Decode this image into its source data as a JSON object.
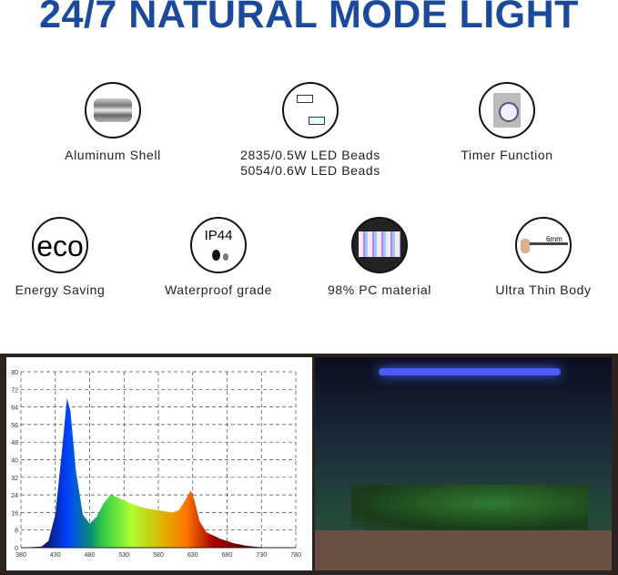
{
  "title": "24/7 NATURAL MODE LIGHT",
  "features": [
    {
      "icon": "aluminum-shell-icon",
      "label": "Aluminum Shell"
    },
    {
      "icon": "led-beads-icon",
      "label": "2835/0.5W LED Beads",
      "label2": "5054/0.6W LED Beads"
    },
    {
      "icon": "timer-icon",
      "label": "Timer Function"
    },
    {
      "icon": "eco-icon",
      "label": "Energy Saving",
      "icon_text": "eco"
    },
    {
      "icon": "waterproof-icon",
      "label": "Waterproof grade",
      "icon_text": "IP44"
    },
    {
      "icon": "pc-material-icon",
      "label": "98% PC material"
    },
    {
      "icon": "thin-body-icon",
      "label": "Ultra Thin Body",
      "icon_text": "6mm"
    }
  ],
  "chart_data": {
    "type": "area",
    "x": [
      380,
      410,
      420,
      430,
      440,
      447,
      452,
      460,
      470,
      480,
      490,
      500,
      510,
      520,
      540,
      560,
      580,
      600,
      610,
      620,
      627,
      632,
      640,
      650,
      670,
      690,
      710,
      730,
      780
    ],
    "y": [
      0,
      0.5,
      3,
      15,
      45,
      68,
      62,
      35,
      15,
      11,
      14,
      20,
      24,
      23,
      20,
      18,
      17,
      16,
      17,
      22,
      26,
      22,
      12,
      7,
      4,
      2,
      0.8,
      0.2,
      0
    ],
    "xlim": [
      380,
      780
    ],
    "ylim": [
      0,
      80
    ],
    "xticks": [
      "380",
      "430",
      "480",
      "530",
      "580",
      "630",
      "680",
      "730",
      "780"
    ],
    "yticks": [
      "0",
      "8",
      "16",
      "24",
      "32",
      "40",
      "48",
      "56",
      "64",
      "72",
      "80"
    ],
    "grid": true
  }
}
